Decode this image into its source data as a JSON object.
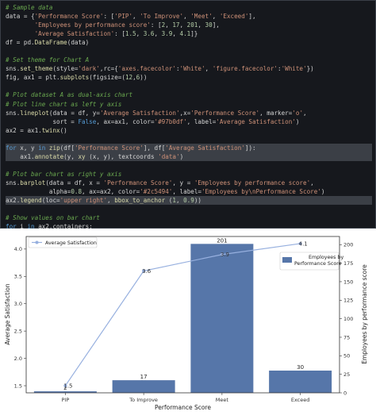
{
  "code_lines": [
    "# Sample data",
    "data = {'Performance Score': ['PIP', 'To Improve', 'Meet', 'Exceed'],",
    "        'Employees by performance score': [2, 17, 201, 30],",
    "        'Average Satisfaction': [1.5, 3.6, 3.9, 4.1]}",
    "df = pd.DataFrame(data)",
    "",
    "# Set theme for Chart A",
    "sns.set_theme(style='dark',rc={'axes.facecolor':'White', 'figure.facecolor':'White'})",
    "fig, ax1 = plt.subplots(figsize=(12,6))",
    "",
    "# Plot dataset A as dual-axis chart",
    "# Plot line chart as left y axis",
    "sns.lineplot(data = df, y='Average Satisfaction',x='Performance Score', marker='o',",
    "             sort = False, ax=ax1, color='#97b0df', label='Average Satisfaction')",
    "ax2 = ax1.twinx()",
    "",
    "for x, y in zip(df['Performance Score'], df['Average Satisfaction']):",
    "    ax1.annotate(y, xy (x, y), textcoords 'data')",
    "",
    "# Plot bar chart as right y axis",
    "sns.barplot(data = df, x = 'Performance Score', y = 'Employees by performance score',",
    "            alpha=0.8, ax=ax2, color='#2c5494', label='Employees by\\nPerformance Score')",
    "ax2.legend(loc='upper right', bbox_to_anchor (1, 0.9))",
    "",
    "# Show values on bar chart",
    "for i in ax2.containers:",
    "    ax2.bar_label(i,)"
  ],
  "highlighted_lines": [
    16,
    17,
    22
  ],
  "chart_data": {
    "type": "bar",
    "categories": [
      "PIP",
      "To Improve",
      "Meet",
      "Exceed"
    ],
    "xlabel": "Performance Score",
    "series": [
      {
        "name": "Employees by Performance Score",
        "axis": "right",
        "kind": "bar",
        "values": [
          2,
          17,
          201,
          30
        ],
        "labels": [
          "2",
          "17",
          "201",
          "30"
        ],
        "color": "#2c5494",
        "alpha": 0.8
      },
      {
        "name": "Average Satisfaction",
        "axis": "left",
        "kind": "line",
        "values": [
          1.5,
          3.6,
          3.9,
          4.1
        ],
        "labels": [
          "1.5",
          "3.6",
          "3.9",
          "4.1"
        ],
        "color": "#97b0df",
        "marker": "o"
      }
    ],
    "y_left": {
      "label": "Average Satisfaction",
      "ticks": [
        "1.5",
        "2.0",
        "2.5",
        "3.0",
        "3.5",
        "4.0"
      ],
      "lim": [
        1.37,
        4.23
      ]
    },
    "y_right": {
      "label": "Employees by performance score",
      "ticks": [
        "0",
        "25",
        "50",
        "75",
        "100",
        "125",
        "150",
        "175",
        "200"
      ],
      "lim": [
        0,
        211
      ]
    },
    "legend_left": {
      "placement": "upper-left",
      "label": "Average Satisfaction"
    },
    "legend_right": {
      "placement": "upper-right",
      "label_lines": [
        "Employees by",
        "Performance Score"
      ]
    },
    "grid": false
  }
}
